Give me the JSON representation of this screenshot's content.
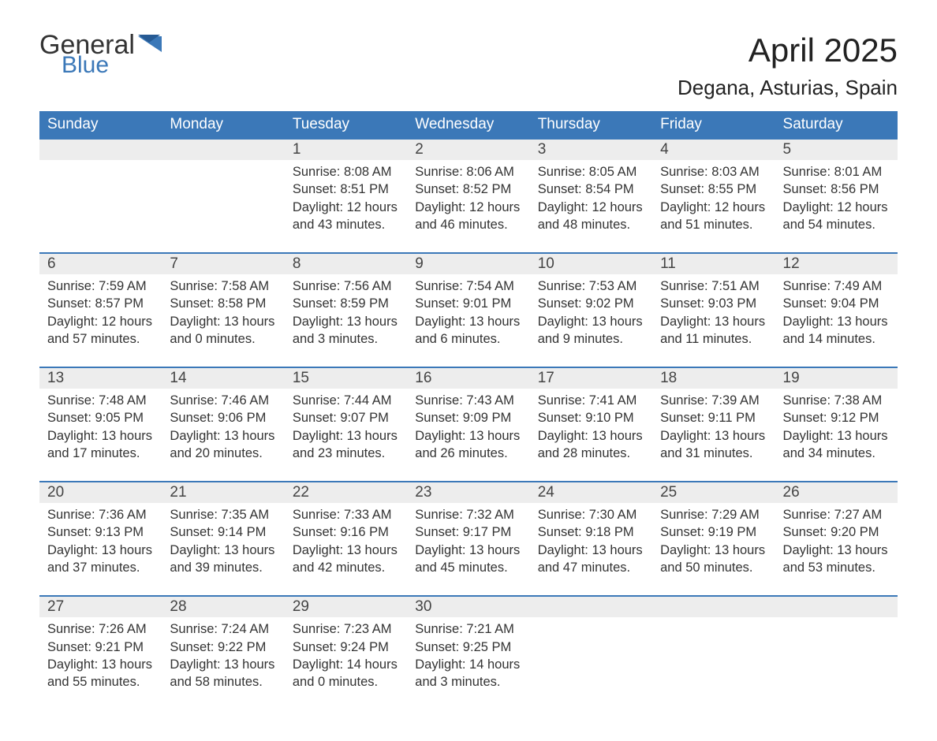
{
  "logo": {
    "word1": "General",
    "word2": "Blue"
  },
  "title": "April 2025",
  "location": "Degana, Asturias, Spain",
  "colors": {
    "header_bg": "#3b78b8",
    "header_text": "#ffffff",
    "daynum_bg": "#ededed",
    "row_border": "#3b78b8",
    "body_text": "#333333",
    "page_bg": "#ffffff",
    "logo_gray": "#333333",
    "logo_blue": "#3b78b8"
  },
  "typography": {
    "title_fontsize": 42,
    "location_fontsize": 26,
    "dayheader_fontsize": 19,
    "daynum_fontsize": 19,
    "cell_fontsize": 16.5,
    "font_family": "Arial"
  },
  "layout": {
    "columns": 7,
    "rows": 5,
    "first_weekday_index": 2
  },
  "day_headers": [
    "Sunday",
    "Monday",
    "Tuesday",
    "Wednesday",
    "Thursday",
    "Friday",
    "Saturday"
  ],
  "weeks": [
    [
      null,
      null,
      {
        "n": "1",
        "sunrise": "8:08 AM",
        "sunset": "8:51 PM",
        "daylight": "12 hours and 43 minutes."
      },
      {
        "n": "2",
        "sunrise": "8:06 AM",
        "sunset": "8:52 PM",
        "daylight": "12 hours and 46 minutes."
      },
      {
        "n": "3",
        "sunrise": "8:05 AM",
        "sunset": "8:54 PM",
        "daylight": "12 hours and 48 minutes."
      },
      {
        "n": "4",
        "sunrise": "8:03 AM",
        "sunset": "8:55 PM",
        "daylight": "12 hours and 51 minutes."
      },
      {
        "n": "5",
        "sunrise": "8:01 AM",
        "sunset": "8:56 PM",
        "daylight": "12 hours and 54 minutes."
      }
    ],
    [
      {
        "n": "6",
        "sunrise": "7:59 AM",
        "sunset": "8:57 PM",
        "daylight": "12 hours and 57 minutes."
      },
      {
        "n": "7",
        "sunrise": "7:58 AM",
        "sunset": "8:58 PM",
        "daylight": "13 hours and 0 minutes."
      },
      {
        "n": "8",
        "sunrise": "7:56 AM",
        "sunset": "8:59 PM",
        "daylight": "13 hours and 3 minutes."
      },
      {
        "n": "9",
        "sunrise": "7:54 AM",
        "sunset": "9:01 PM",
        "daylight": "13 hours and 6 minutes."
      },
      {
        "n": "10",
        "sunrise": "7:53 AM",
        "sunset": "9:02 PM",
        "daylight": "13 hours and 9 minutes."
      },
      {
        "n": "11",
        "sunrise": "7:51 AM",
        "sunset": "9:03 PM",
        "daylight": "13 hours and 11 minutes."
      },
      {
        "n": "12",
        "sunrise": "7:49 AM",
        "sunset": "9:04 PM",
        "daylight": "13 hours and 14 minutes."
      }
    ],
    [
      {
        "n": "13",
        "sunrise": "7:48 AM",
        "sunset": "9:05 PM",
        "daylight": "13 hours and 17 minutes."
      },
      {
        "n": "14",
        "sunrise": "7:46 AM",
        "sunset": "9:06 PM",
        "daylight": "13 hours and 20 minutes."
      },
      {
        "n": "15",
        "sunrise": "7:44 AM",
        "sunset": "9:07 PM",
        "daylight": "13 hours and 23 minutes."
      },
      {
        "n": "16",
        "sunrise": "7:43 AM",
        "sunset": "9:09 PM",
        "daylight": "13 hours and 26 minutes."
      },
      {
        "n": "17",
        "sunrise": "7:41 AM",
        "sunset": "9:10 PM",
        "daylight": "13 hours and 28 minutes."
      },
      {
        "n": "18",
        "sunrise": "7:39 AM",
        "sunset": "9:11 PM",
        "daylight": "13 hours and 31 minutes."
      },
      {
        "n": "19",
        "sunrise": "7:38 AM",
        "sunset": "9:12 PM",
        "daylight": "13 hours and 34 minutes."
      }
    ],
    [
      {
        "n": "20",
        "sunrise": "7:36 AM",
        "sunset": "9:13 PM",
        "daylight": "13 hours and 37 minutes."
      },
      {
        "n": "21",
        "sunrise": "7:35 AM",
        "sunset": "9:14 PM",
        "daylight": "13 hours and 39 minutes."
      },
      {
        "n": "22",
        "sunrise": "7:33 AM",
        "sunset": "9:16 PM",
        "daylight": "13 hours and 42 minutes."
      },
      {
        "n": "23",
        "sunrise": "7:32 AM",
        "sunset": "9:17 PM",
        "daylight": "13 hours and 45 minutes."
      },
      {
        "n": "24",
        "sunrise": "7:30 AM",
        "sunset": "9:18 PM",
        "daylight": "13 hours and 47 minutes."
      },
      {
        "n": "25",
        "sunrise": "7:29 AM",
        "sunset": "9:19 PM",
        "daylight": "13 hours and 50 minutes."
      },
      {
        "n": "26",
        "sunrise": "7:27 AM",
        "sunset": "9:20 PM",
        "daylight": "13 hours and 53 minutes."
      }
    ],
    [
      {
        "n": "27",
        "sunrise": "7:26 AM",
        "sunset": "9:21 PM",
        "daylight": "13 hours and 55 minutes."
      },
      {
        "n": "28",
        "sunrise": "7:24 AM",
        "sunset": "9:22 PM",
        "daylight": "13 hours and 58 minutes."
      },
      {
        "n": "29",
        "sunrise": "7:23 AM",
        "sunset": "9:24 PM",
        "daylight": "14 hours and 0 minutes."
      },
      {
        "n": "30",
        "sunrise": "7:21 AM",
        "sunset": "9:25 PM",
        "daylight": "14 hours and 3 minutes."
      },
      null,
      null,
      null
    ]
  ],
  "labels": {
    "sunrise": "Sunrise: ",
    "sunset": "Sunset: ",
    "daylight": "Daylight: "
  }
}
